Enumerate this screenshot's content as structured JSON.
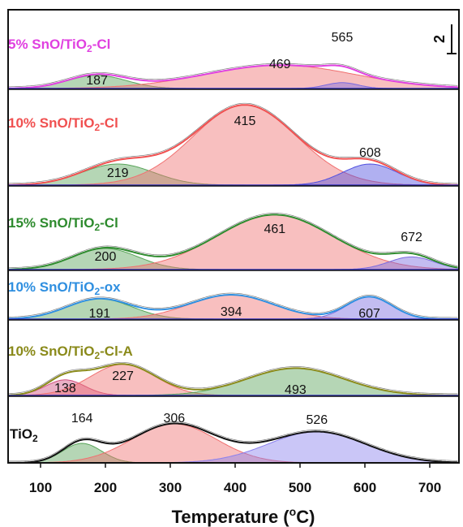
{
  "chart_data": {
    "type": "area",
    "xlabel": "Temperature (°C)",
    "xlabel_parts": [
      "Temperature (",
      "o",
      "C)"
    ],
    "xlim": [
      50,
      745
    ],
    "xticks": [
      100,
      200,
      300,
      400,
      500,
      600,
      700
    ],
    "scale_bar": "2",
    "panels": [
      {
        "name": "5% SnO/TiO2-Cl",
        "name_parts": [
          "5% SnO/TiO",
          "2",
          "-Cl"
        ],
        "color": "#e040e0",
        "peaks": [
          {
            "center": 187,
            "height": 0.9,
            "width": 45,
            "color": "#5aa55a"
          },
          {
            "center": 469,
            "height": 1.6,
            "width": 115,
            "color": "#f07070"
          },
          {
            "center": 565,
            "height": 0.4,
            "width": 25,
            "color": "#7a6ae0"
          }
        ],
        "labels": [
          {
            "text": "187",
            "x": 187
          },
          {
            "text": "469",
            "x": 469
          },
          {
            "text": "565",
            "x": 565
          }
        ]
      },
      {
        "name": "10% SnO/TiO2-Cl",
        "name_parts": [
          "10% SnO/TiO",
          "2",
          "-Cl"
        ],
        "color": "#f05050",
        "peaks": [
          {
            "center": 219,
            "height": 1.0,
            "width": 55,
            "color": "#5aa55a"
          },
          {
            "center": 415,
            "height": 3.8,
            "width": 80,
            "color": "#f07070"
          },
          {
            "center": 608,
            "height": 1.0,
            "width": 42,
            "color": "#5050e0"
          }
        ],
        "labels": [
          {
            "text": "219",
            "x": 219
          },
          {
            "text": "415",
            "x": 415
          },
          {
            "text": "608",
            "x": 608
          }
        ]
      },
      {
        "name": "15% SnO/TiO2-Cl",
        "name_parts": [
          "15% SnO/TiO",
          "2",
          "-Cl"
        ],
        "color": "#2e8b2e",
        "peaks": [
          {
            "center": 200,
            "height": 1.0,
            "width": 50,
            "color": "#5aa55a"
          },
          {
            "center": 461,
            "height": 2.6,
            "width": 90,
            "color": "#f07070"
          },
          {
            "center": 672,
            "height": 0.6,
            "width": 35,
            "color": "#7a6ae0"
          }
        ],
        "labels": [
          {
            "text": "200",
            "x": 200
          },
          {
            "text": "461",
            "x": 461
          },
          {
            "text": "672",
            "x": 672
          }
        ]
      },
      {
        "name": "10% SnO/TiO2-ox",
        "name_parts": [
          "10% SnO/TiO",
          "2",
          "-ox"
        ],
        "color": "#2f8fe0",
        "peaks": [
          {
            "center": 191,
            "height": 1.0,
            "width": 50,
            "color": "#5aa55a"
          },
          {
            "center": 394,
            "height": 1.2,
            "width": 65,
            "color": "#f07070"
          },
          {
            "center": 607,
            "height": 1.1,
            "width": 35,
            "color": "#7a6ae0"
          }
        ],
        "labels": [
          {
            "text": "191",
            "x": 191
          },
          {
            "text": "394",
            "x": 394
          },
          {
            "text": "607",
            "x": 607
          }
        ]
      },
      {
        "name": "10% SnO/TiO2-Cl-A",
        "name_parts": [
          "10% SnO/TiO",
          "2",
          "-Cl-A"
        ],
        "color": "#8a8a1a",
        "peaks": [
          {
            "center": 138,
            "height": 0.8,
            "width": 30,
            "color": "#d05080"
          },
          {
            "center": 227,
            "height": 1.6,
            "width": 50,
            "color": "#f07070"
          },
          {
            "center": 493,
            "height": 1.4,
            "width": 75,
            "color": "#5aa55a"
          }
        ],
        "labels": [
          {
            "text": "138",
            "x": 138
          },
          {
            "text": "227",
            "x": 227
          },
          {
            "text": "493",
            "x": 493
          }
        ]
      },
      {
        "name": "TiO2",
        "name_parts": [
          "TiO",
          "2",
          ""
        ],
        "color": "#111111",
        "peaks": [
          {
            "center": 164,
            "height": 1.0,
            "width": 30,
            "color": "#5aa55a"
          },
          {
            "center": 306,
            "height": 2.0,
            "width": 65,
            "color": "#f07070"
          },
          {
            "center": 526,
            "height": 1.6,
            "width": 75,
            "color": "#8a80ee"
          }
        ],
        "labels": [
          {
            "text": "164",
            "x": 164
          },
          {
            "text": "306",
            "x": 306
          },
          {
            "text": "526",
            "x": 526
          }
        ]
      }
    ]
  }
}
